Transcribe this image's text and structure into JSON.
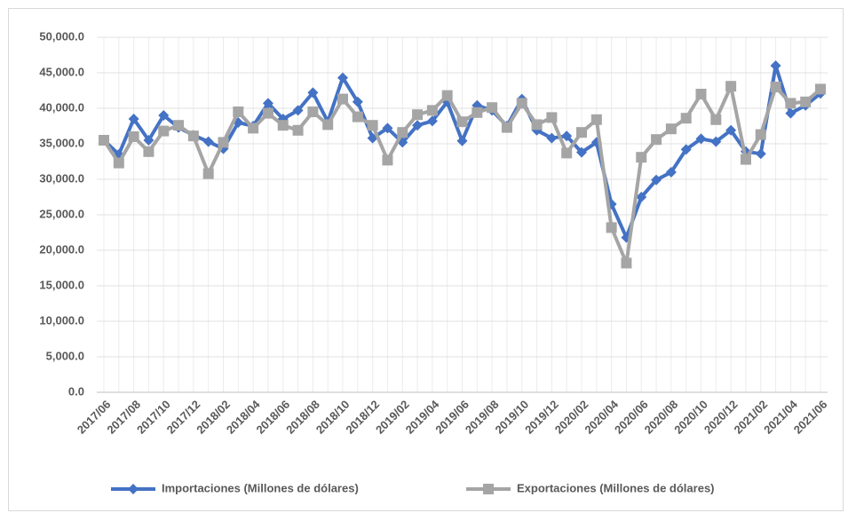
{
  "chart_data": {
    "type": "line",
    "categories": [
      "2017/06",
      null,
      "2017/08",
      null,
      "2017/10",
      null,
      "2017/12",
      null,
      "2018/02",
      null,
      "2018/04",
      null,
      "2018/06",
      null,
      "2018/08",
      null,
      "2018/10",
      null,
      "2018/12",
      null,
      "2019/02",
      null,
      "2019/04",
      null,
      "2019/06",
      null,
      "2019/08",
      null,
      "2019/10",
      null,
      "2019/12",
      null,
      "2020/02",
      null,
      "2020/04",
      null,
      "2020/06",
      null,
      "2020/08",
      null,
      "2020/10",
      null,
      "2020/12",
      null,
      "2021/02",
      null,
      "2021/04",
      null,
      "2021/06"
    ],
    "series": [
      {
        "name": "Importaciones (Millones de dólares)",
        "color": "#4472c4",
        "marker": "diamond",
        "values": [
          35500,
          33500,
          38500,
          35500,
          39000,
          37300,
          36200,
          35300,
          34300,
          38000,
          37500,
          40700,
          38500,
          39700,
          42200,
          38100,
          44300,
          40900,
          35800,
          37200,
          35200,
          37600,
          38200,
          40900,
          35400,
          40400,
          39700,
          37500,
          41300,
          36900,
          35800,
          36100,
          33800,
          35200,
          26500,
          21800,
          27500,
          29900,
          31000,
          34200,
          35700,
          35300,
          36900,
          33900,
          33600,
          46000,
          39300,
          40400,
          42100
        ]
      },
      {
        "name": "Exportaciones (Millones de dólares)",
        "color": "#a5a5a5",
        "marker": "square",
        "values": [
          35500,
          32300,
          36000,
          33900,
          36800,
          37600,
          36100,
          30800,
          35200,
          39500,
          37200,
          39300,
          37600,
          36900,
          39500,
          37700,
          41300,
          38800,
          37600,
          32700,
          36600,
          39100,
          39700,
          41800,
          38100,
          39400,
          40100,
          37300,
          40700,
          37700,
          38700,
          33700,
          36600,
          38400,
          23200,
          18200,
          33100,
          35600,
          37100,
          38600,
          42000,
          38400,
          43100,
          32800,
          36300,
          43000,
          40700,
          40900,
          42700
        ]
      }
    ],
    "ylim": [
      0,
      50000
    ],
    "yticks": [
      {
        "value": 0,
        "label": "0.0"
      },
      {
        "value": 5000,
        "label": "5,000.0"
      },
      {
        "value": 10000,
        "label": "10,000.0"
      },
      {
        "value": 15000,
        "label": "15,000.0"
      },
      {
        "value": 20000,
        "label": "20,000.0"
      },
      {
        "value": 25000,
        "label": "25,000.0"
      },
      {
        "value": 30000,
        "label": "30,000.0"
      },
      {
        "value": 35000,
        "label": "35,000.0"
      },
      {
        "value": 40000,
        "label": "40,000.0"
      },
      {
        "value": 45000,
        "label": "45,000.0"
      },
      {
        "value": 50000,
        "label": "50,000.0"
      }
    ],
    "grid": true,
    "legend": "bottom"
  }
}
